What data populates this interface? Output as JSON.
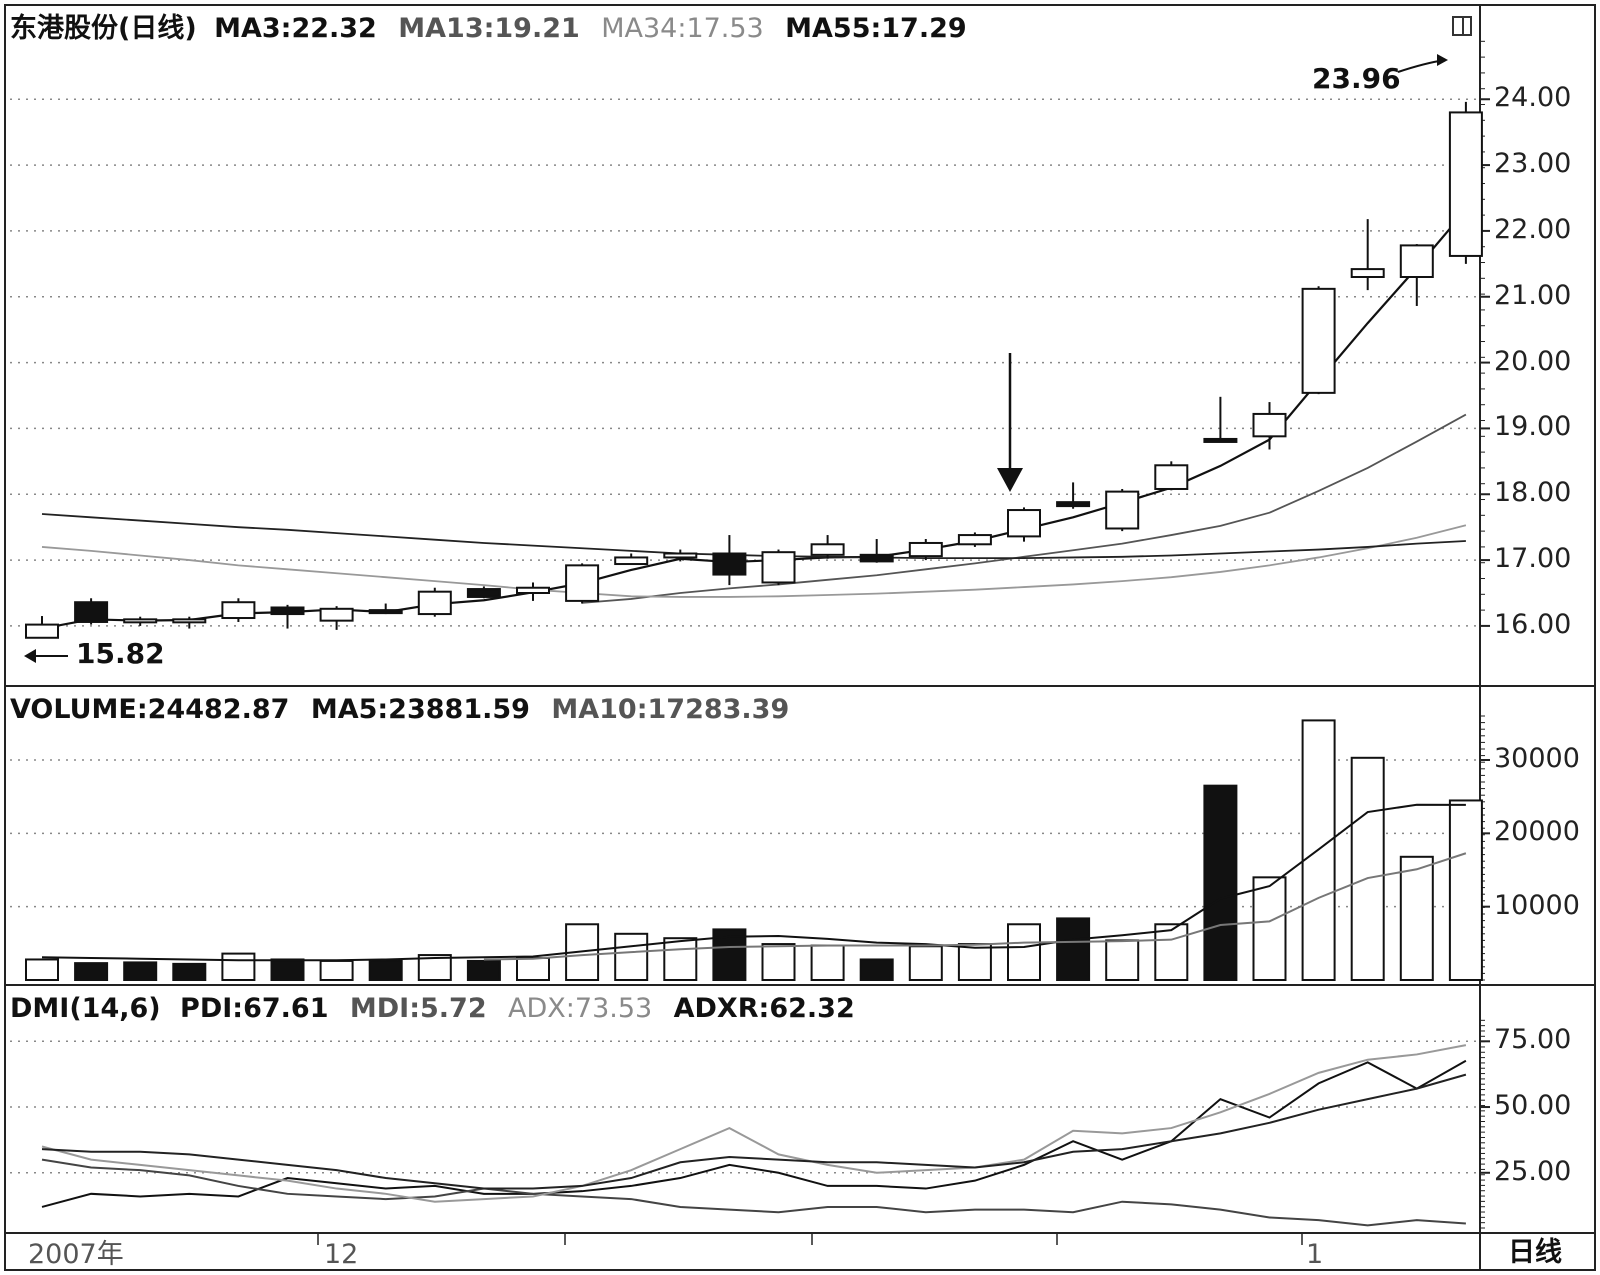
{
  "price_panel": {
    "stock_name": "东港股份(日线)",
    "ma_labels": [
      {
        "text": "MA3:22.32",
        "color": "#111111"
      },
      {
        "text": "MA13:19.21",
        "color": "#555555"
      },
      {
        "text": "MA34:17.53",
        "color": "#8a8a8a"
      },
      {
        "text": "MA55:17.29",
        "color": "#111111"
      }
    ],
    "high_label": "23.96",
    "low_label": "15.82",
    "toggle_icon": "window-toggle-icon"
  },
  "volume_panel": {
    "title": "VOLUME:24482.87",
    "ma5": "MA5:23881.59",
    "ma10": "MA10:17283.39"
  },
  "dmi_panel": {
    "title": "DMI(14,6)",
    "pdi": "PDI:67.61",
    "mdi": "MDI:5.72",
    "adx": "ADX:73.53",
    "adxr": "ADXR:62.32"
  },
  "x_axis": {
    "year_label": "2007年",
    "month_labels": [
      "12",
      "1"
    ],
    "period_label": "日线"
  },
  "chart_data": [
    {
      "type": "candlestick",
      "ylim": [
        15.3,
        24.9
      ],
      "yticks": [
        "24.00",
        "23.00",
        "22.00",
        "21.00",
        "20.00",
        "19.00",
        "18.00",
        "17.00",
        "16.00"
      ],
      "candles": [
        {
          "o": 15.82,
          "c": 16.02,
          "h": 16.15,
          "l": 15.82
        },
        {
          "o": 16.36,
          "c": 16.06,
          "h": 16.42,
          "l": 16.02
        },
        {
          "o": 16.08,
          "c": 16.1,
          "h": 16.14,
          "l": 16.0
        },
        {
          "o": 16.1,
          "c": 16.1,
          "h": 16.14,
          "l": 15.96
        },
        {
          "o": 16.12,
          "c": 16.36,
          "h": 16.42,
          "l": 16.06
        },
        {
          "o": 16.28,
          "c": 16.18,
          "h": 16.32,
          "l": 15.96
        },
        {
          "o": 16.08,
          "c": 16.26,
          "h": 16.3,
          "l": 15.94
        },
        {
          "o": 16.24,
          "c": 16.2,
          "h": 16.34,
          "l": 16.18
        },
        {
          "o": 16.18,
          "c": 16.52,
          "h": 16.58,
          "l": 16.14
        },
        {
          "o": 16.56,
          "c": 16.44,
          "h": 16.6,
          "l": 16.42
        },
        {
          "o": 16.5,
          "c": 16.58,
          "h": 16.66,
          "l": 16.38
        },
        {
          "o": 16.38,
          "c": 16.92,
          "h": 16.95,
          "l": 16.34
        },
        {
          "o": 16.94,
          "c": 17.04,
          "h": 17.1,
          "l": 16.94
        },
        {
          "o": 17.04,
          "c": 17.1,
          "h": 17.16,
          "l": 16.98
        },
        {
          "o": 17.1,
          "c": 16.78,
          "h": 17.38,
          "l": 16.62
        },
        {
          "o": 16.66,
          "c": 17.12,
          "h": 17.16,
          "l": 16.62
        },
        {
          "o": 17.08,
          "c": 17.24,
          "h": 17.38,
          "l": 17.02
        },
        {
          "o": 17.08,
          "c": 16.98,
          "h": 17.32,
          "l": 16.96
        },
        {
          "o": 17.06,
          "c": 17.26,
          "h": 17.32,
          "l": 17.0
        },
        {
          "o": 17.24,
          "c": 17.38,
          "h": 17.42,
          "l": 17.2
        },
        {
          "o": 17.36,
          "c": 17.76,
          "h": 17.8,
          "l": 17.28
        },
        {
          "o": 17.88,
          "c": 17.82,
          "h": 18.18,
          "l": 17.78
        },
        {
          "o": 17.48,
          "c": 18.04,
          "h": 18.08,
          "l": 17.44
        },
        {
          "o": 18.08,
          "c": 18.44,
          "h": 18.5,
          "l": 18.06
        },
        {
          "o": 18.84,
          "c": 18.82,
          "h": 19.48,
          "l": 18.8
        },
        {
          "o": 18.88,
          "c": 19.22,
          "h": 19.4,
          "l": 18.68
        },
        {
          "o": 19.54,
          "c": 21.12,
          "h": 21.16,
          "l": 19.52
        },
        {
          "o": 21.3,
          "c": 21.42,
          "h": 22.18,
          "l": 21.1
        },
        {
          "o": 21.3,
          "c": 21.78,
          "h": 21.8,
          "l": 20.86
        },
        {
          "o": 21.62,
          "c": 23.8,
          "h": 23.96,
          "l": 21.5
        }
      ],
      "ma_series": [
        {
          "name": "MA3",
          "values": [
            15.96,
            16.1,
            16.08,
            16.09,
            16.19,
            16.21,
            16.25,
            16.21,
            16.33,
            16.39,
            16.51,
            16.65,
            16.85,
            17.02,
            16.97,
            17.0,
            17.04,
            17.05,
            17.16,
            17.29,
            17.47,
            17.65,
            17.87,
            18.1,
            18.43,
            18.83,
            19.72,
            20.6,
            21.44,
            22.32
          ]
        },
        {
          "name": "MA13",
          "values": [
            null,
            null,
            null,
            null,
            null,
            null,
            null,
            null,
            null,
            null,
            null,
            16.35,
            16.41,
            16.5,
            16.57,
            16.63,
            16.7,
            16.77,
            16.86,
            16.95,
            17.05,
            17.15,
            17.25,
            17.38,
            17.52,
            17.72,
            18.05,
            18.4,
            18.8,
            19.21
          ]
        },
        {
          "name": "MA34",
          "values": [
            17.2,
            17.14,
            17.07,
            17.0,
            16.92,
            16.86,
            16.8,
            16.74,
            16.68,
            16.62,
            16.55,
            16.5,
            16.45,
            16.44,
            16.44,
            16.45,
            16.47,
            16.49,
            16.52,
            16.55,
            16.59,
            16.63,
            16.68,
            16.74,
            16.82,
            16.92,
            17.04,
            17.18,
            17.34,
            17.53
          ]
        },
        {
          "name": "MA55",
          "values": [
            17.7,
            17.65,
            17.6,
            17.55,
            17.5,
            17.46,
            17.41,
            17.36,
            17.31,
            17.26,
            17.22,
            17.18,
            17.14,
            17.1,
            17.08,
            17.06,
            17.05,
            17.04,
            17.03,
            17.03,
            17.03,
            17.04,
            17.05,
            17.07,
            17.1,
            17.13,
            17.16,
            17.2,
            17.25,
            17.29
          ]
        }
      ]
    },
    {
      "type": "bar",
      "ylim": [
        0,
        36000
      ],
      "yticks": [
        "30000",
        "20000",
        "10000"
      ],
      "values": [
        2800,
        2300,
        2400,
        2200,
        3600,
        2800,
        2600,
        2600,
        3400,
        2600,
        3000,
        7600,
        6300,
        5700,
        6900,
        4900,
        4700,
        2800,
        4600,
        4900,
        7600,
        8400,
        5400,
        7600,
        26500,
        14000,
        35400,
        30300,
        16800,
        24482.87
      ],
      "down_days": [
        1,
        2,
        3,
        5,
        7,
        9,
        14,
        17,
        21,
        24
      ],
      "ma_series": [
        {
          "name": "MA5",
          "values": [
            3100,
            3000,
            2900,
            2800,
            2700,
            2700,
            2700,
            2800,
            3000,
            3100,
            3200,
            3900,
            4600,
            5300,
            5900,
            6000,
            5600,
            5100,
            4900,
            4400,
            4500,
            5500,
            6100,
            6800,
            11100,
            12800,
            17800,
            22900,
            23900,
            23881.59
          ]
        },
        {
          "name": "MA10",
          "values": [
            null,
            null,
            null,
            null,
            null,
            null,
            null,
            null,
            null,
            2800,
            2900,
            3400,
            3800,
            4200,
            4500,
            4600,
            4700,
            4700,
            4700,
            4800,
            5100,
            5200,
            5300,
            5500,
            7500,
            8000,
            11200,
            13900,
            15100,
            17283.39
          ]
        }
      ]
    },
    {
      "type": "line",
      "ylim": [
        4,
        85
      ],
      "yticks": [
        "75.00",
        "50.00",
        "25.00"
      ],
      "series": [
        {
          "name": "PDI",
          "values": [
            12,
            17,
            16,
            17,
            16,
            23,
            21,
            19,
            20,
            17,
            17,
            18,
            20,
            23,
            28,
            25,
            20,
            20,
            19,
            22,
            28,
            37,
            30,
            37,
            53,
            46,
            59,
            67,
            57,
            67.61
          ]
        },
        {
          "name": "MDI",
          "values": [
            30,
            27,
            26,
            24,
            20,
            17,
            16,
            15,
            16,
            19,
            17,
            16,
            15,
            12,
            11,
            10,
            12,
            12,
            10,
            11,
            11,
            10,
            14,
            13,
            11,
            8,
            7,
            5,
            7,
            5.72
          ]
        },
        {
          "name": "ADX",
          "values": [
            35,
            30,
            28,
            26,
            24,
            22,
            19,
            17,
            14,
            15,
            16,
            20,
            26,
            34,
            42,
            32,
            28,
            25,
            26,
            27,
            30,
            41,
            40,
            42,
            48,
            55,
            63,
            68,
            70,
            73.53
          ]
        },
        {
          "name": "ADXR",
          "values": [
            34,
            33,
            33,
            32,
            30,
            28,
            26,
            23,
            21,
            19,
            19,
            20,
            23,
            29,
            31,
            30,
            29,
            29,
            28,
            27,
            29,
            33,
            34,
            37,
            40,
            44,
            49,
            53,
            57,
            62.32
          ]
        }
      ]
    }
  ]
}
